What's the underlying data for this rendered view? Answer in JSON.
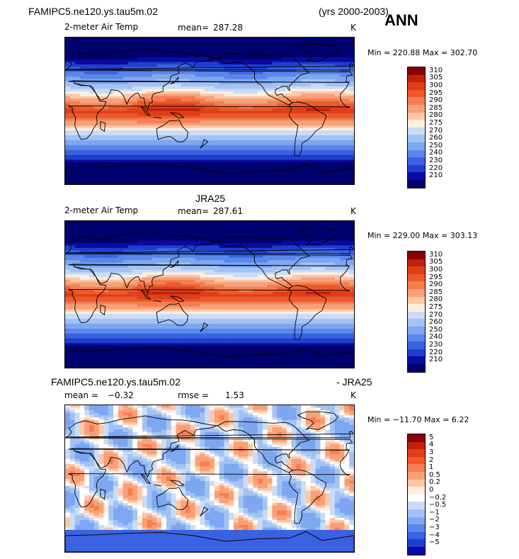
{
  "header": {
    "case_name": "FAMIPC5.ne120.ys.tau5m.02",
    "years": "(yrs 2000-2003)",
    "season": "ANN"
  },
  "chart_data": [
    {
      "type": "heatmap",
      "title": "FAMIPC5.ne120.ys.tau5m.02",
      "variable": "2-meter Air Temp",
      "units": "K",
      "mean_label": "mean=",
      "mean": "287.28",
      "min_label": "Min =",
      "min": "220.88",
      "max_label": "Max =",
      "max": "302.70",
      "levels": [
        "310",
        "305",
        "300",
        "295",
        "290",
        "285",
        "280",
        "275",
        "270",
        "260",
        "250",
        "240",
        "230",
        "220",
        "210"
      ],
      "colors": [
        "#8b0000",
        "#c0200c",
        "#de3f19",
        "#ec5a2c",
        "#f47e52",
        "#f8a078",
        "#fbc7a8",
        "#fdeede",
        "#c9dcf7",
        "#a3c2f4",
        "#7da7f1",
        "#5a87ec",
        "#3b62e0",
        "#1f3fd0",
        "#0a0aa0",
        "#00006e"
      ]
    },
    {
      "type": "heatmap",
      "title": "JRA25",
      "variable": "2-meter Air Temp",
      "units": "K",
      "mean_label": "mean=",
      "mean": "287.61",
      "min_label": "Min =",
      "min": "229.00",
      "max_label": "Max =",
      "max": "303.13",
      "levels": [
        "310",
        "305",
        "300",
        "295",
        "290",
        "285",
        "280",
        "275",
        "270",
        "260",
        "250",
        "240",
        "230",
        "220",
        "210"
      ],
      "colors": [
        "#8b0000",
        "#c0200c",
        "#de3f19",
        "#ec5a2c",
        "#f47e52",
        "#f8a078",
        "#fbc7a8",
        "#fdeede",
        "#c9dcf7",
        "#a3c2f4",
        "#7da7f1",
        "#5a87ec",
        "#3b62e0",
        "#1f3fd0",
        "#0a0aa0",
        "#00006e"
      ]
    },
    {
      "type": "heatmap",
      "title": "FAMIPC5.ne120.ys.tau5m.02",
      "title_suffix": "- JRA25",
      "units": "K",
      "mean_label": "mean =",
      "mean": "−0.32",
      "rmse_label": "rmse =",
      "rmse": "1.53",
      "min_label": "Min =",
      "min": "−11.70",
      "max_label": "Max =",
      "max": "6.22",
      "levels": [
        "5",
        "4",
        "3",
        "2",
        "1",
        "0.5",
        "0.2",
        "0",
        "−0.2",
        "−0.5",
        "−1",
        "−2",
        "−3",
        "−4",
        "−5"
      ],
      "colors": [
        "#8b0000",
        "#c0200c",
        "#de3f19",
        "#ec5a2c",
        "#f47e52",
        "#f8a078",
        "#fbc7a8",
        "#fdeede",
        "#ffffff",
        "#c9dcf7",
        "#a3c2f4",
        "#7da7f1",
        "#5a87ec",
        "#3b62e0",
        "#1f3fd0",
        "#0a0aa0"
      ]
    }
  ]
}
